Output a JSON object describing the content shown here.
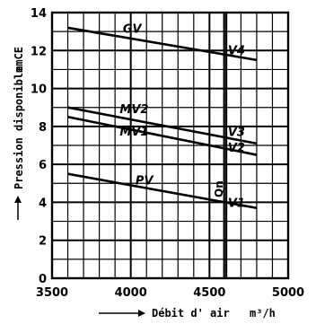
{
  "chart_data": {
    "type": "line",
    "xlabel": "Débit d' air",
    "xunit": "m³/h",
    "ylabel": "Pression disponible",
    "yunit": "mmCE",
    "xlim": [
      3500,
      5000
    ],
    "ylim": [
      0,
      14
    ],
    "xticks": [
      3500,
      4000,
      4500,
      5000
    ],
    "yticks": [
      0,
      2,
      4,
      6,
      8,
      10,
      12,
      14
    ],
    "x_minor_step": 100,
    "y_minor_step": 1,
    "grid": true,
    "series": [
      {
        "name": "GV",
        "x": [
          3600,
          4800
        ],
        "y": [
          13.2,
          11.5
        ]
      },
      {
        "name": "MV2",
        "x": [
          3600,
          4800
        ],
        "y": [
          9.0,
          7.1
        ]
      },
      {
        "name": "MV1",
        "x": [
          3600,
          4800
        ],
        "y": [
          8.5,
          6.5
        ]
      },
      {
        "name": "PV",
        "x": [
          3600,
          4800
        ],
        "y": [
          5.5,
          3.7
        ]
      }
    ],
    "nominal_flow": {
      "label": "Qn",
      "x": 4600
    },
    "speed_points": [
      {
        "label": "V4",
        "x": 4600,
        "y": 11.9
      },
      {
        "label": "V3",
        "x": 4600,
        "y": 7.5
      },
      {
        "label": "V2",
        "x": 4600,
        "y": 6.8
      },
      {
        "label": "V1",
        "x": 4600,
        "y": 4.0
      }
    ]
  }
}
